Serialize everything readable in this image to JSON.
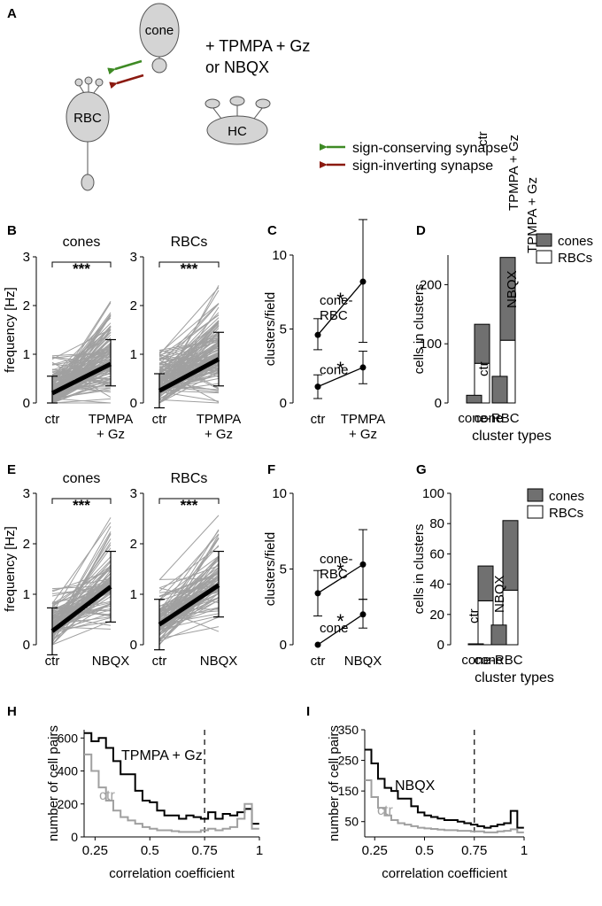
{
  "colors": {
    "grey_line": "#a0a0a0",
    "dark_bar": "#707070",
    "green_arrow": "#3e8a24",
    "red_arrow": "#8b1a10",
    "cell_fill": "#d4d4d4"
  },
  "panelA": {
    "letter": "A",
    "cells": {
      "cone": "cone",
      "rbc": "RBC",
      "hc": "HC"
    },
    "drug_line1": "+ TPMPA + Gz",
    "drug_line2": "or NBQX",
    "legend": [
      "sign-conserving synapse",
      "sign-inverting synapse"
    ]
  },
  "chart_data": [
    {
      "panel": "B",
      "type": "line",
      "title": "cones",
      "ylabel": "frequency [Hz]",
      "categories": [
        "ctr",
        "TPMPA + Gz"
      ],
      "ylim": [
        0,
        3
      ],
      "yticks": [
        0,
        1,
        2,
        3
      ],
      "significance": "***",
      "mean": [
        0.2,
        0.8
      ],
      "error": [
        [
          0.0,
          0.55
        ],
        [
          0.35,
          1.3
        ]
      ]
    },
    {
      "panel": "B",
      "type": "line",
      "title": "RBCs",
      "ylabel": "",
      "categories": [
        "ctr",
        "TPMPA + Gz"
      ],
      "ylim": [
        0,
        3
      ],
      "yticks": [
        0,
        1,
        2,
        3
      ],
      "significance": "***",
      "mean": [
        0.25,
        0.9
      ],
      "error": [
        [
          -0.1,
          0.6
        ],
        [
          0.35,
          1.45
        ]
      ]
    },
    {
      "panel": "C",
      "type": "line",
      "ylabel": "clusters/field",
      "categories": [
        "ctr",
        "TPMPA + Gz"
      ],
      "ylim": [
        0,
        10
      ],
      "yticks": [
        0,
        5,
        10
      ],
      "series": [
        {
          "name": "cone-RBC",
          "values": [
            4.6,
            8.2
          ],
          "error": [
            [
              3.6,
              5.7
            ],
            [
              4.1,
              12.4
            ]
          ],
          "significance": "*"
        },
        {
          "name": "cone",
          "values": [
            1.1,
            2.4
          ],
          "error": [
            [
              0.3,
              1.9
            ],
            [
              1.3,
              3.5
            ]
          ],
          "significance": "*"
        }
      ]
    },
    {
      "panel": "D",
      "type": "bar",
      "ylabel": "cells in clusters",
      "xlabel": "cluster types",
      "ylim": [
        0,
        250
      ],
      "yticks": [
        0,
        100,
        200
      ],
      "groups": [
        "cone-RBC",
        "cone"
      ],
      "legend": [
        "cones",
        "RBCs"
      ],
      "bars": [
        {
          "group": "cone-RBC",
          "label": "ctr",
          "cones": 66,
          "RBCs": 67
        },
        {
          "group": "cone-RBC",
          "label": "TPMPA + Gz",
          "cones": 140,
          "RBCs": 106
        },
        {
          "group": "cone",
          "label": "",
          "cones": 13,
          "RBCs": 0
        },
        {
          "group": "cone",
          "label": "TPMPA + Gz",
          "cones": 45,
          "RBCs": 0
        }
      ]
    },
    {
      "panel": "E",
      "type": "line",
      "title": "cones",
      "ylabel": "frequency [Hz]",
      "categories": [
        "ctr",
        "NBQX"
      ],
      "ylim": [
        0,
        3
      ],
      "yticks": [
        0,
        1,
        2,
        3
      ],
      "significance": "***",
      "mean": [
        0.27,
        1.15
      ],
      "error": [
        [
          -0.2,
          0.73
        ],
        [
          0.45,
          1.85
        ]
      ]
    },
    {
      "panel": "E",
      "type": "line",
      "title": "RBCs",
      "ylabel": "",
      "categories": [
        "ctr",
        "NBQX"
      ],
      "ylim": [
        0,
        3
      ],
      "yticks": [
        0,
        1,
        2,
        3
      ],
      "significance": "***",
      "mean": [
        0.4,
        1.18
      ],
      "error": [
        [
          -0.1,
          0.9
        ],
        [
          0.55,
          1.85
        ]
      ]
    },
    {
      "panel": "F",
      "type": "line",
      "ylabel": "clusters/field",
      "categories": [
        "ctr",
        "NBQX"
      ],
      "ylim": [
        0,
        10
      ],
      "yticks": [
        0,
        5,
        10
      ],
      "series": [
        {
          "name": "cone-RBC",
          "values": [
            3.4,
            5.3
          ],
          "error": [
            [
              1.9,
              4.9
            ],
            [
              3.0,
              7.6
            ]
          ],
          "significance": "*"
        },
        {
          "name": "cone",
          "values": [
            0.0,
            2.0
          ],
          "error": [
            [
              0.0,
              0.0
            ],
            [
              1.1,
              3.0
            ]
          ],
          "significance": "*"
        }
      ]
    },
    {
      "panel": "G",
      "type": "bar",
      "ylabel": "cells in clusters",
      "xlabel": "cluster types",
      "ylim": [
        0,
        100
      ],
      "yticks": [
        0,
        20,
        40,
        60,
        80,
        100
      ],
      "groups": [
        "cone-RBC",
        "cone"
      ],
      "legend": [
        "cones",
        "RBCs"
      ],
      "bars": [
        {
          "group": "cone-RBC",
          "label": "ctr",
          "cones": 23,
          "RBCs": 29
        },
        {
          "group": "cone-RBC",
          "label": "NBQX",
          "cones": 46,
          "RBCs": 36
        },
        {
          "group": "cone",
          "label": "ctr",
          "cones": 0.6,
          "RBCs": 0
        },
        {
          "group": "cone",
          "label": "NBQX",
          "cones": 13,
          "RBCs": 0
        }
      ]
    },
    {
      "panel": "H",
      "type": "line",
      "ylabel": "number of cell pairs",
      "xlabel": "correlation coefficient",
      "xlim": [
        0.2,
        1.0
      ],
      "ylim": [
        0,
        650
      ],
      "yticks": [
        0,
        200,
        400,
        600
      ],
      "xticks": [
        0.25,
        0.5,
        0.75,
        1
      ],
      "xtick_labels": [
        "0.25",
        "0.5",
        "0.75",
        "1"
      ],
      "threshold": 0.75,
      "bin_width": 0.0333,
      "series": [
        {
          "name": "TPMPA + Gz",
          "color": "#000000",
          "values": [
            630,
            580,
            600,
            540,
            460,
            380,
            380,
            280,
            220,
            210,
            160,
            130,
            130,
            110,
            130,
            120,
            110,
            150,
            110,
            140,
            130,
            150,
            170,
            80
          ]
        },
        {
          "name": "ctr",
          "color": "#a0a0a0",
          "values": [
            500,
            400,
            300,
            220,
            160,
            120,
            100,
            80,
            60,
            50,
            40,
            40,
            35,
            30,
            30,
            30,
            40,
            50,
            40,
            50,
            60,
            110,
            200,
            50
          ]
        }
      ]
    },
    {
      "panel": "I",
      "type": "line",
      "ylabel": "number of cell pairs",
      "xlabel": "correlation coefficient",
      "xlim": [
        0.2,
        1.0
      ],
      "ylim": [
        0,
        350
      ],
      "yticks": [
        50,
        150,
        250,
        350
      ],
      "xticks": [
        0.25,
        0.5,
        0.75,
        1
      ],
      "xtick_labels": [
        "0.25",
        "0.5",
        "0.75",
        "1"
      ],
      "threshold": 0.75,
      "bin_width": 0.0333,
      "series": [
        {
          "name": "NBQX",
          "color": "#000000",
          "values": [
            285,
            240,
            190,
            160,
            150,
            125,
            125,
            100,
            80,
            70,
            65,
            60,
            55,
            55,
            50,
            45,
            40,
            35,
            30,
            35,
            40,
            45,
            85,
            30
          ]
        },
        {
          "name": "ctr",
          "color": "#a0a0a0",
          "values": [
            185,
            130,
            95,
            70,
            55,
            45,
            40,
            35,
            30,
            28,
            26,
            24,
            22,
            22,
            20,
            20,
            18,
            18,
            15,
            15,
            18,
            20,
            25,
            15
          ]
        }
      ]
    }
  ]
}
